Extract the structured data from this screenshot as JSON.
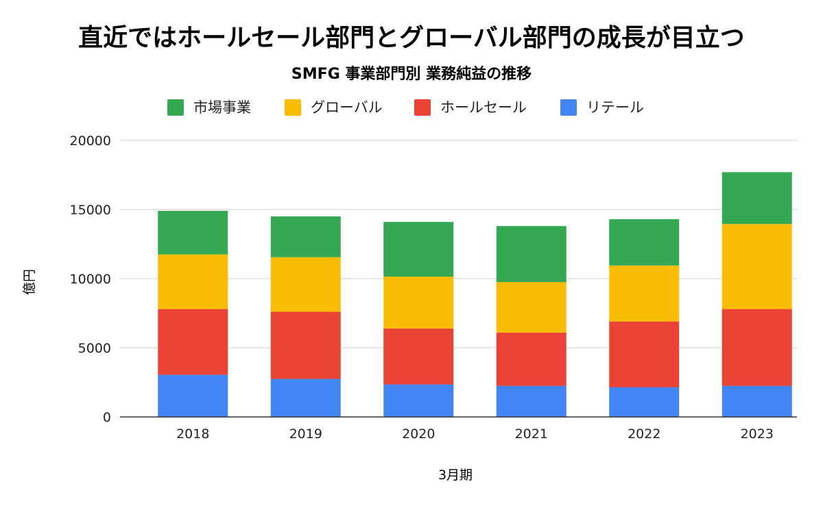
{
  "title": "直近ではホールセール部門とグローバル部門の成長が目立つ",
  "chart_data": {
    "type": "bar",
    "stacked": true,
    "title": "SMFG 事業部門別 業務純益の推移",
    "xlabel": "3月期",
    "ylabel": "億円",
    "ylim": [
      0,
      20000
    ],
    "yticks": [
      0,
      5000,
      10000,
      15000,
      20000
    ],
    "ytick_labels": [
      "0",
      "5000",
      "10000",
      "15000",
      "20000"
    ],
    "legend_position": "top",
    "categories": [
      "2018",
      "2019",
      "2020",
      "2021",
      "2022",
      "2023"
    ],
    "series": [
      {
        "name": "リテール",
        "color": "#4285f4",
        "values": [
          3050,
          2750,
          2350,
          2250,
          2150,
          2250
        ]
      },
      {
        "name": "ホールセール",
        "color": "#ea4335",
        "values": [
          4750,
          4850,
          4050,
          3850,
          4750,
          5550
        ]
      },
      {
        "name": "グローバル",
        "color": "#fbbc04",
        "values": [
          3950,
          3950,
          3750,
          3650,
          4050,
          6150
        ]
      },
      {
        "name": "市場事業",
        "color": "#34a853",
        "values": [
          3150,
          2950,
          3950,
          4050,
          3350,
          3750
        ]
      }
    ],
    "legend_order": [
      "市場事業",
      "グローバル",
      "ホールセール",
      "リテール"
    ]
  }
}
